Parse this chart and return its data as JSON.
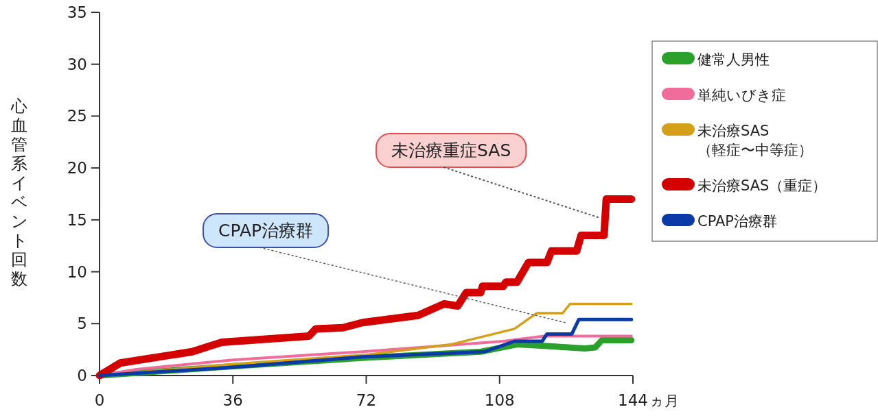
{
  "chart_data": {
    "type": "line",
    "ylabel": "心血管系イベント回数",
    "xlabel": "ヵ月",
    "xlim": [
      0,
      144
    ],
    "ylim": [
      0,
      35
    ],
    "xticks": [
      0,
      36,
      72,
      108,
      144
    ],
    "yticks": [
      0,
      5,
      10,
      15,
      20,
      25,
      30,
      35
    ],
    "legend": "top right",
    "grid": false,
    "marker": "none",
    "line_style": "solid",
    "series": [
      {
        "name": "健常人男性",
        "color": "#2ca02c",
        "x": [
          0,
          36,
          71,
          103,
          112.7,
          120,
          131,
          133.8,
          135.6,
          143.6
        ],
        "values": [
          0,
          0.9,
          1.7,
          2.3,
          3.0,
          2.85,
          2.6,
          2.7,
          3.4,
          3.4
        ]
      },
      {
        "name": "単純いびき症",
        "color": "#f06c9b",
        "x": [
          0,
          10,
          36,
          71,
          109,
          120,
          143.6
        ],
        "values": [
          0,
          0.6,
          1.5,
          2.3,
          3.3,
          3.8,
          3.8
        ]
      },
      {
        "name": "未治療SAS（軽症〜中等症）",
        "color": "#d4a017",
        "x": [
          0,
          36,
          72,
          94.9,
          112,
          118,
          125,
          127,
          143.6
        ],
        "values": [
          0,
          1.1,
          2.0,
          3.0,
          4.5,
          6.0,
          6.0,
          6.9,
          6.9
        ]
      },
      {
        "name": "未治療SAS（重症）",
        "color": "#d40000",
        "x": [
          0,
          5.6,
          25,
          33,
          56.5,
          58.4,
          65.7,
          71,
          86,
          93,
          96.7,
          99,
          102.9,
          103.4,
          109,
          109.7,
          112.7,
          115.8,
          120.8,
          122,
          128.8,
          130,
          136.2,
          136.8,
          143.6
        ],
        "values": [
          0,
          1.2,
          2.3,
          3.2,
          3.8,
          4.5,
          4.6,
          5.1,
          5.8,
          6.9,
          6.7,
          8.0,
          8.0,
          8.6,
          8.6,
          9.0,
          9.0,
          10.9,
          10.9,
          12.0,
          12.0,
          13.5,
          13.5,
          17.0,
          17.0
        ]
      },
      {
        "name": "CPAP治療群",
        "color": "#0a3aa8",
        "x": [
          0,
          36,
          71,
          104,
          112,
          119.5,
          120.8,
          127.5,
          129.4,
          143.6
        ],
        "values": [
          0,
          0.8,
          1.8,
          2.3,
          3.3,
          3.3,
          4.0,
          4.0,
          5.4,
          5.4
        ]
      }
    ],
    "annotations": [
      {
        "text": "未治療重症SAS",
        "x": 135,
        "y": 15.2
      },
      "CPAP治療群"
    ]
  }
}
